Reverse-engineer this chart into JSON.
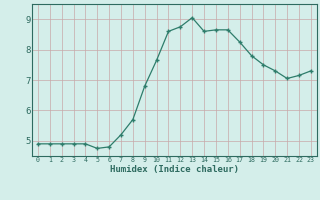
{
  "title": "",
  "xlabel": "Humidex (Indice chaleur)",
  "ylabel": "",
  "x_values": [
    0,
    1,
    2,
    3,
    4,
    5,
    6,
    7,
    8,
    9,
    10,
    11,
    12,
    13,
    14,
    15,
    16,
    17,
    18,
    19,
    20,
    21,
    22,
    23
  ],
  "y_values": [
    4.9,
    4.9,
    4.9,
    4.9,
    4.9,
    4.75,
    4.8,
    5.2,
    5.7,
    6.8,
    7.65,
    8.6,
    8.75,
    9.05,
    8.6,
    8.65,
    8.65,
    8.25,
    7.8,
    7.5,
    7.3,
    7.05,
    7.15,
    7.3
  ],
  "line_color": "#2e7d6b",
  "marker_color": "#2e7d6b",
  "bg_color": "#d4eeea",
  "grid_color": "#c8a8a8",
  "tick_color": "#2e6b60",
  "xlim": [
    -0.5,
    23.5
  ],
  "ylim": [
    4.5,
    9.5
  ],
  "yticks": [
    5,
    6,
    7,
    8,
    9
  ],
  "xticks": [
    0,
    1,
    2,
    3,
    4,
    5,
    6,
    7,
    8,
    9,
    10,
    11,
    12,
    13,
    14,
    15,
    16,
    17,
    18,
    19,
    20,
    21,
    22,
    23
  ]
}
